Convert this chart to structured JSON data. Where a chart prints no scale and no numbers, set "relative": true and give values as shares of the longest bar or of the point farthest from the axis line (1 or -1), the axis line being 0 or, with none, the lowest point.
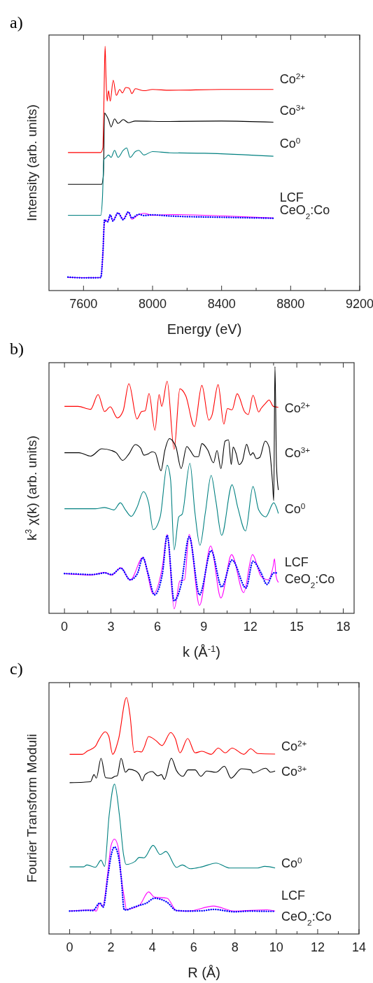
{
  "chart_data": [
    {
      "type": "line",
      "title": "a)",
      "xlabel": "Energy (eV)",
      "ylabel": "Intensity (arb. units)",
      "relative": true,
      "xlim": [
        7400,
        9200
      ],
      "xticks": [
        7600,
        {
          "value": 7800,
          "label": null
        },
        8000,
        {
          "value": 8200,
          "label": null
        },
        8400,
        {
          "value": 8600,
          "label": null
        },
        8800,
        {
          "value": 9000,
          "label": null
        },
        9200
      ],
      "series": [
        {
          "name": "Co$^{2+}$",
          "color": "#ff0000",
          "x": [
            7510,
            7700,
            7712,
            7718,
            7725,
            7730,
            7737,
            7745,
            7755,
            7772,
            7790,
            7810,
            7825,
            7845,
            7865,
            7880,
            7900,
            7950,
            8000,
            8100,
            8400,
            8700
          ],
          "values": [
            0.565,
            0.565,
            0.584,
            0.766,
            1.0,
            0.88,
            0.775,
            0.818,
            0.775,
            0.861,
            0.799,
            0.823,
            0.809,
            0.831,
            0.828,
            0.806,
            0.826,
            0.818,
            0.823,
            0.82,
            0.823,
            0.823
          ]
        },
        {
          "name": "Co$^{3+}$",
          "color": "#000000",
          "x": [
            7510,
            7705,
            7715,
            7722,
            7730,
            7745,
            7760,
            7780,
            7800,
            7830,
            7860,
            7900,
            8100,
            8400,
            8700
          ],
          "values": [
            0.435,
            0.435,
            0.469,
            0.727,
            0.72,
            0.699,
            0.67,
            0.703,
            0.684,
            0.7,
            0.687,
            0.694,
            0.692,
            0.694,
            0.689
          ]
        },
        {
          "name": "Co$^{0}$",
          "color": "#008080",
          "x": [
            7510,
            7700,
            7710,
            7718,
            7730,
            7745,
            7760,
            7780,
            7800,
            7830,
            7850,
            7870,
            7900,
            7920,
            7950,
            8000,
            8100,
            8300,
            8700
          ],
          "values": [
            0.308,
            0.308,
            0.383,
            0.536,
            0.545,
            0.555,
            0.545,
            0.574,
            0.545,
            0.574,
            0.584,
            0.545,
            0.569,
            0.574,
            0.555,
            0.569,
            0.564,
            0.562,
            0.55
          ]
        },
        {
          "name": "LCF",
          "color": "#ff00ff",
          "x": [
            7510,
            7700,
            7712,
            7722,
            7728,
            7740,
            7755,
            7770,
            7800,
            7830,
            7860,
            7880,
            7920,
            7950,
            8000,
            8100,
            8400,
            8700
          ],
          "values": [
            0.053,
            0.053,
            0.144,
            0.287,
            0.29,
            0.282,
            0.308,
            0.287,
            0.318,
            0.292,
            0.321,
            0.292,
            0.311,
            0.316,
            0.308,
            0.311,
            0.306,
            0.297
          ]
        },
        {
          "name": "CeO$_{2}$:Co",
          "line_style": "dotted",
          "color": "#0000ff",
          "x": [
            7510,
            7600,
            7700,
            7712,
            7722,
            7728,
            7740,
            7755,
            7770,
            7800,
            7830,
            7860,
            7880,
            7920,
            7950,
            8000,
            8100,
            8400,
            8700
          ],
          "values": [
            0.055,
            0.052,
            0.053,
            0.15,
            0.29,
            0.285,
            0.282,
            0.31,
            0.285,
            0.318,
            0.29,
            0.322,
            0.297,
            0.312,
            0.307,
            0.31,
            0.305,
            0.3,
            0.296
          ]
        }
      ]
    },
    {
      "type": "line",
      "title": "b)",
      "xlabel": "k (Å$^{-1}$)",
      "ylabel": "k$^{3}$ χ(k) (arb. units)",
      "relative": true,
      "xlim": [
        -1,
        18.7
      ],
      "xticks": [
        0,
        {
          "value": 1.5,
          "label": null
        },
        3,
        {
          "value": 4.5,
          "label": null
        },
        6,
        {
          "value": 7.5,
          "label": null
        },
        9,
        {
          "value": 10.5,
          "label": null
        },
        12,
        {
          "value": 13.5,
          "label": null
        },
        15,
        {
          "value": 16.5,
          "label": null
        },
        18
      ],
      "series": [
        {
          "name": "Co$^{2+}$",
          "color": "#ff0000",
          "x": [
            0,
            0.87,
            1.69,
            2.17,
            2.59,
            2.96,
            3.41,
            3.79,
            4.16,
            4.68,
            4.98,
            5.21,
            5.46,
            5.84,
            6.11,
            6.28,
            6.63,
            7.08,
            7.45,
            7.83,
            8.39,
            8.87,
            9.32,
            9.52,
            9.92,
            10.29,
            10.52,
            10.82,
            11.15,
            11.64,
            11.87,
            12.17,
            12.54,
            12.69,
            12.99,
            13.21,
            13.48,
            13.81
          ],
          "values": [
            0.839,
            0.839,
            0.827,
            0.887,
            0.818,
            0.837,
            0.792,
            0.821,
            0.931,
            0.788,
            0.818,
            0.821,
            0.891,
            0.742,
            0.887,
            0.839,
            0.941,
            0.665,
            0.91,
            0.882,
            0.757,
            0.924,
            0.783,
            0.802,
            0.927,
            0.767,
            0.83,
            0.825,
            0.89,
            0.816,
            0.806,
            0.884,
            0.816,
            0.83,
            0.852,
            0.865,
            0.839,
            0.835
          ]
        },
        {
          "name": "Co$^{3+}$",
          "color": "#000000",
          "x": [
            0,
            0.94,
            1.69,
            2.41,
            3.04,
            3.34,
            3.76,
            4.16,
            4.57,
            4.91,
            5.13,
            5.4,
            5.66,
            5.85,
            6.23,
            6.48,
            6.78,
            7.0,
            7.2,
            7.53,
            7.9,
            8.12,
            8.42,
            8.65,
            8.87,
            9.25,
            9.62,
            9.85,
            10.1,
            10.37,
            10.59,
            10.77,
            10.89,
            11.09,
            11.27,
            11.49,
            11.76,
            12.01,
            12.17,
            12.39,
            12.61,
            12.96,
            13.21,
            13.44,
            13.51,
            13.59,
            13.69,
            13.81
          ],
          "values": [
            0.651,
            0.651,
            0.637,
            0.667,
            0.66,
            0.651,
            0.62,
            0.646,
            0.684,
            0.67,
            0.641,
            0.646,
            0.655,
            0.651,
            0.578,
            0.66,
            0.708,
            0.698,
            0.674,
            0.587,
            0.676,
            0.66,
            0.635,
            0.635,
            0.688,
            0.662,
            0.61,
            0.66,
            0.587,
            0.698,
            0.703,
            0.603,
            0.674,
            0.646,
            0.603,
            0.618,
            0.685,
            0.641,
            0.651,
            0.627,
            0.632,
            0.698,
            0.674,
            0.523,
            0.457,
            1.0,
            0.599,
            0.5
          ]
        },
        {
          "name": "Co$^{0}$",
          "color": "#008080",
          "x": [
            0,
            1.99,
            2.59,
            3.19,
            3.61,
            3.94,
            4.31,
            4.68,
            5.1,
            5.43,
            5.73,
            6.18,
            6.63,
            6.85,
            7.08,
            7.38,
            7.6,
            8.1,
            8.42,
            8.75,
            9.1,
            9.47,
            9.77,
            10.15,
            10.82,
            11.19,
            11.69,
            12.17,
            12.54,
            12.99,
            13.51,
            13.81
          ],
          "values": [
            0.424,
            0.424,
            0.429,
            0.419,
            0.448,
            0.419,
            0.393,
            0.429,
            0.493,
            0.448,
            0.339,
            0.391,
            0.6,
            0.542,
            0.257,
            0.391,
            0.402,
            0.608,
            0.41,
            0.276,
            0.41,
            0.559,
            0.457,
            0.316,
            0.521,
            0.429,
            0.334,
            0.514,
            0.419,
            0.391,
            0.448,
            0.405
          ]
        },
        {
          "name": "LCF",
          "color": "#ff00ff",
          "x": [
            0,
            1.69,
            2.59,
            3.04,
            3.64,
            4.24,
            5.06,
            5.73,
            6.33,
            6.63,
            7.08,
            7.45,
            7.75,
            8.05,
            8.72,
            9.44,
            10.1,
            10.79,
            11.57,
            12.14,
            12.69,
            13.14,
            13.48,
            13.56,
            13.66,
            13.81
          ],
          "values": [
            0.161,
            0.155,
            0.166,
            0.155,
            0.185,
            0.134,
            0.226,
            0.079,
            0.193,
            0.32,
            0.018,
            0.131,
            0.136,
            0.32,
            0.032,
            0.273,
            0.062,
            0.238,
            0.084,
            0.238,
            0.15,
            0.136,
            0.193,
            0.221,
            0.15,
            0.125
          ]
        },
        {
          "name": "CeO$_{2}$:Co",
          "line_style": "dotted",
          "color": "#0000ff",
          "x": [
            0,
            0.6,
            1.2,
            1.69,
            2.2,
            2.59,
            3.04,
            3.64,
            4.24,
            4.7,
            5.06,
            5.4,
            5.81,
            6.33,
            6.63,
            7.08,
            7.53,
            8.05,
            8.72,
            9.47,
            10.15,
            10.82,
            11.72,
            12.17,
            12.69,
            13.07,
            13.51,
            13.81
          ],
          "values": [
            0.161,
            0.16,
            0.158,
            0.157,
            0.16,
            0.164,
            0.157,
            0.183,
            0.136,
            0.16,
            0.226,
            0.16,
            0.075,
            0.164,
            0.316,
            0.051,
            0.117,
            0.31,
            0.075,
            0.254,
            0.107,
            0.216,
            0.103,
            0.211,
            0.164,
            0.117,
            0.164,
            0.164
          ]
        }
      ]
    },
    {
      "type": "line",
      "title": "c)",
      "xlabel": "R (Å)",
      "ylabel": "Fourier Transform Moduli",
      "relative": true,
      "xlim": [
        -1,
        14
      ],
      "xticks": [
        0,
        {
          "value": 1,
          "label": null
        },
        2,
        {
          "value": 3,
          "label": null
        },
        4,
        {
          "value": 5,
          "label": null
        },
        6,
        {
          "value": 7,
          "label": null
        },
        8,
        {
          "value": 9,
          "label": null
        },
        10,
        {
          "value": 11,
          "label": null
        },
        12,
        {
          "value": 13,
          "label": null
        },
        14
      ],
      "series": [
        {
          "name": "Co$^{2+}$",
          "color": "#ff0000",
          "x": [
            0,
            0.62,
            0.84,
            1.24,
            1.4,
            1.72,
            1.89,
            2.08,
            2.36,
            2.75,
            2.92,
            3.12,
            3.26,
            3.48,
            3.6,
            3.82,
            4.16,
            4.47,
            4.89,
            5.11,
            5.34,
            5.71,
            6.07,
            6.4,
            6.85,
            7.19,
            7.53,
            7.86,
            8.43,
            8.76,
            9.1,
            9.94
          ],
          "values": [
            0.76,
            0.76,
            0.773,
            0.793,
            0.819,
            0.855,
            0.837,
            0.76,
            0.822,
            1.0,
            0.926,
            0.768,
            0.773,
            0.77,
            0.788,
            0.835,
            0.819,
            0.797,
            0.852,
            0.827,
            0.766,
            0.827,
            0.766,
            0.773,
            0.76,
            0.786,
            0.766,
            0.786,
            0.76,
            0.783,
            0.763,
            0.761
          ]
        },
        {
          "name": "Co$^{3+}$",
          "color": "#000000",
          "x": [
            0,
            0.67,
            1.01,
            1.18,
            1.29,
            1.52,
            1.74,
            2.02,
            2.19,
            2.3,
            2.49,
            2.7,
            2.87,
            3.2,
            3.37,
            3.51,
            3.65,
            3.99,
            4.27,
            4.44,
            4.58,
            4.92,
            5.17,
            5.48,
            5.73,
            6.07,
            6.35,
            6.63,
            7.08,
            7.49,
            7.81,
            8.31,
            8.76,
            8.87,
            9.49,
            9.72,
            9.94
          ],
          "values": [
            0.64,
            0.642,
            0.644,
            0.674,
            0.659,
            0.743,
            0.661,
            0.659,
            0.667,
            0.669,
            0.743,
            0.684,
            0.697,
            0.689,
            0.674,
            0.648,
            0.674,
            0.687,
            0.669,
            0.674,
            0.654,
            0.743,
            0.691,
            0.667,
            0.694,
            0.694,
            0.667,
            0.689,
            0.684,
            0.709,
            0.659,
            0.699,
            0.694,
            0.681,
            0.701,
            0.684,
            0.689
          ]
        },
        {
          "name": "Co$^{0}$",
          "color": "#008080",
          "x": [
            0,
            0.67,
            0.84,
            1.24,
            1.52,
            1.69,
            1.91,
            2.17,
            2.41,
            2.61,
            2.73,
            3.15,
            3.37,
            3.6,
            4.04,
            4.38,
            4.66,
            5.17,
            5.45,
            5.84,
            6.4,
            7.08,
            7.75,
            9.1,
            9.44,
            9.94
          ],
          "values": [
            0.284,
            0.284,
            0.292,
            0.282,
            0.312,
            0.286,
            0.501,
            0.634,
            0.501,
            0.334,
            0.294,
            0.306,
            0.324,
            0.322,
            0.375,
            0.336,
            0.349,
            0.282,
            0.292,
            0.276,
            0.284,
            0.3,
            0.279,
            0.279,
            0.286,
            0.279
          ]
        },
        {
          "name": "LCF",
          "color": "#ff00ff",
          "x": [
            0,
            1.12,
            1.29,
            1.46,
            1.6,
            1.85,
            2.0,
            2.17,
            2.36,
            2.49,
            2.64,
            2.75,
            3.37,
            3.82,
            4.1,
            4.72,
            5.17,
            5.73,
            6.96,
            7.98,
            9.55,
            9.94
          ],
          "values": [
            0.097,
            0.102,
            0.097,
            0.131,
            0.116,
            0.264,
            0.373,
            0.401,
            0.363,
            0.243,
            0.156,
            0.104,
            0.121,
            0.178,
            0.156,
            0.151,
            0.099,
            0.097,
            0.118,
            0.097,
            0.102,
            0.097
          ]
        },
        {
          "name": "CeO$_{2}$:Co",
          "line_style": "dotted",
          "color": "#0000ff",
          "x": [
            0,
            0.4,
            0.8,
            1.12,
            1.46,
            1.62,
            1.85,
            2.0,
            2.17,
            2.36,
            2.49,
            2.64,
            2.75,
            3.0,
            3.37,
            3.7,
            4.1,
            4.72,
            5.17,
            5.73,
            6.4,
            6.96,
            7.98,
            8.8,
            9.5,
            9.94
          ],
          "values": [
            0.097,
            0.098,
            0.1,
            0.099,
            0.131,
            0.114,
            0.243,
            0.33,
            0.368,
            0.33,
            0.243,
            0.102,
            0.102,
            0.11,
            0.121,
            0.13,
            0.151,
            0.134,
            0.099,
            0.097,
            0.098,
            0.104,
            0.094,
            0.097,
            0.096,
            0.096
          ]
        }
      ]
    }
  ]
}
